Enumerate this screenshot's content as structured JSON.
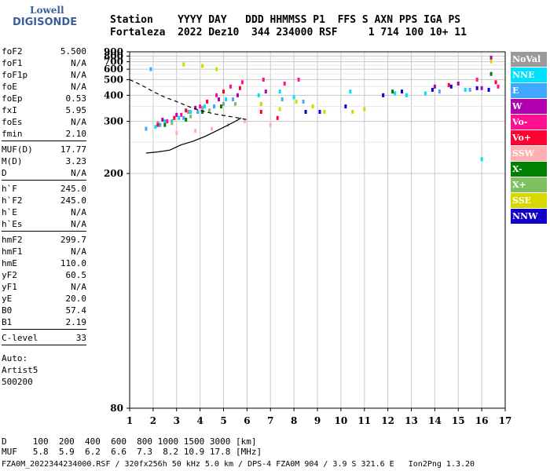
{
  "logo": {
    "line1": "Lowell",
    "line2": "DIGISONDE"
  },
  "header": {
    "line1": "Station    YYYY DAY   DDD HHMMSS P1  FFS S AXN PPS IGA PS",
    "line2": "Fortaleza  2022 Dez10  344 234000 RSF     1 714 100 10+ 11"
  },
  "params": {
    "group1": [
      {
        "label": "foF2",
        "value": "5.500"
      },
      {
        "label": "foF1",
        "value": "N/A"
      },
      {
        "label": "foF1p",
        "value": "N/A"
      },
      {
        "label": "foE",
        "value": "N/A"
      },
      {
        "label": "foEp",
        "value": "0.53"
      },
      {
        "label": "fxI",
        "value": "5.95"
      },
      {
        "label": "foEs",
        "value": "N/A"
      },
      {
        "label": "fmin",
        "value": "2.10"
      }
    ],
    "group2": [
      {
        "label": "MUF(D)",
        "value": "17.77"
      },
      {
        "label": "M(D)",
        "value": "3.23"
      },
      {
        "label": "D",
        "value": "N/A"
      }
    ],
    "group3": [
      {
        "label": "h`F",
        "value": "245.0"
      },
      {
        "label": "h`F2",
        "value": "245.0"
      },
      {
        "label": "h`E",
        "value": "N/A"
      },
      {
        "label": "h`Es",
        "value": "N/A"
      }
    ],
    "group4": [
      {
        "label": "hmF2",
        "value": "299.7"
      },
      {
        "label": "hmF1",
        "value": "N/A"
      },
      {
        "label": "hmE",
        "value": "110.0"
      },
      {
        "label": "yF2",
        "value": "60.5"
      },
      {
        "label": "yF1",
        "value": "N/A"
      },
      {
        "label": "yE",
        "value": "20.0"
      },
      {
        "label": "B0",
        "value": "57.4"
      },
      {
        "label": "B1",
        "value": "2.19"
      }
    ],
    "group5": [
      {
        "label": "C-level",
        "value": "33"
      }
    ],
    "auto": [
      "Auto:",
      "Artist5",
      "500200"
    ]
  },
  "legend": [
    {
      "label": "NoVal",
      "color": "#9a9a9a"
    },
    {
      "label": "NNE",
      "color": "#00e0ff"
    },
    {
      "label": "E",
      "color": "#40a8ff"
    },
    {
      "label": "W",
      "color": "#b000b0"
    },
    {
      "label": "Vo-",
      "color": "#ff1090"
    },
    {
      "label": "Vo+",
      "color": "#ff0030"
    },
    {
      "label": "SSW",
      "color": "#ffb0b0"
    },
    {
      "label": "X-",
      "color": "#008000"
    },
    {
      "label": "X+",
      "color": "#80c060"
    },
    {
      "label": "SSE",
      "color": "#d8d800"
    },
    {
      "label": "NNW",
      "color": "#1000c8"
    }
  ],
  "muf_table": {
    "line1": "D     100  200  400  600  800 1000 1500 3000 [km]",
    "line2": "MUF   5.8  5.9  6.2  6.6  7.3  8.2 10.9 17.8 [MHz]"
  },
  "footer": "FZA0M_2022344234000.RSF / 320fx256h 50 kHz 5.0 km / DPS-4 FZA0M 904 / 3.9 S 321.6 E   Ion2Png 1.3.20",
  "chart_data": {
    "type": "scatter",
    "x_ticks": [
      "1",
      "2",
      "3",
      "4",
      "5",
      "6",
      "7",
      "8",
      "9",
      "10",
      "11",
      "12",
      "13",
      "14",
      "15",
      "16",
      "17"
    ],
    "y_ticks": [
      "80",
      "200",
      "300",
      "400",
      "500",
      "600",
      "700",
      "800",
      "900"
    ],
    "xlim": [
      1,
      17
    ],
    "y_scale": "reciprocal",
    "ylim": [
      80,
      900
    ],
    "grid": true,
    "series": [
      {
        "name": "NoVal",
        "color": "#9a9a9a",
        "points": [
          [
            2.2,
            295
          ],
          [
            3.5,
            330
          ],
          [
            4.1,
            345
          ],
          [
            5.0,
            360
          ]
        ]
      },
      {
        "name": "NNE",
        "color": "#00e0ff",
        "points": [
          [
            2.1,
            285
          ],
          [
            2.5,
            300
          ],
          [
            3.1,
            310
          ],
          [
            3.6,
            330
          ],
          [
            4.2,
            350
          ],
          [
            5.1,
            380
          ],
          [
            6.5,
            400
          ],
          [
            7.4,
            420
          ],
          [
            8.0,
            390
          ],
          [
            10.4,
            420
          ],
          [
            12.3,
            410
          ],
          [
            12.8,
            400
          ],
          [
            13.6,
            410
          ],
          [
            15.3,
            430
          ],
          [
            16.0,
            220
          ]
        ]
      },
      {
        "name": "E",
        "color": "#40a8ff",
        "points": [
          [
            1.7,
            280
          ],
          [
            2.3,
            290
          ],
          [
            2.8,
            300
          ],
          [
            3.3,
            310
          ],
          [
            3.9,
            330
          ],
          [
            4.6,
            350
          ],
          [
            5.4,
            380
          ],
          [
            6.6,
            360
          ],
          [
            7.5,
            380
          ],
          [
            8.4,
            370
          ],
          [
            1.9,
            600
          ],
          [
            14.2,
            420
          ],
          [
            15.5,
            430
          ]
        ]
      },
      {
        "name": "W",
        "color": "#b000b0",
        "points": [
          [
            2.4,
            305
          ],
          [
            3.0,
            320
          ],
          [
            3.8,
            345
          ],
          [
            4.8,
            380
          ],
          [
            5.6,
            400
          ],
          [
            6.8,
            420
          ],
          [
            14.0,
            450
          ],
          [
            15.0,
            470
          ],
          [
            16.0,
            440
          ],
          [
            16.4,
            770
          ]
        ]
      },
      {
        "name": "Vo-",
        "color": "#ff1090",
        "points": [
          [
            2.6,
            300
          ],
          [
            3.2,
            320
          ],
          [
            4.0,
            350
          ],
          [
            4.7,
            400
          ],
          [
            5.3,
            450
          ],
          [
            5.8,
            480
          ],
          [
            6.7,
            500
          ],
          [
            7.6,
            470
          ],
          [
            8.2,
            500
          ],
          [
            15.8,
            500
          ],
          [
            16.7,
            450
          ]
        ]
      },
      {
        "name": "Vo+",
        "color": "#ff0030",
        "points": [
          [
            2.2,
            290
          ],
          [
            2.9,
            310
          ],
          [
            3.4,
            335
          ],
          [
            4.3,
            370
          ],
          [
            5.0,
            420
          ],
          [
            5.7,
            440
          ],
          [
            6.6,
            330
          ],
          [
            7.3,
            310
          ],
          [
            14.6,
            460
          ],
          [
            16.6,
            480
          ]
        ]
      },
      {
        "name": "SSW",
        "color": "#ffb0b0",
        "points": [
          [
            3.0,
            270
          ],
          [
            3.8,
            275
          ],
          [
            4.5,
            280
          ],
          [
            5.2,
            290
          ],
          [
            5.9,
            300
          ],
          [
            7.0,
            290
          ]
        ]
      },
      {
        "name": "X-",
        "color": "#008000",
        "points": [
          [
            2.5,
            290
          ],
          [
            3.4,
            305
          ],
          [
            4.1,
            330
          ],
          [
            4.9,
            350
          ],
          [
            12.2,
            420
          ],
          [
            16.4,
            550
          ]
        ]
      },
      {
        "name": "X+",
        "color": "#80c060",
        "points": [
          [
            2.8,
            295
          ],
          [
            3.6,
            315
          ],
          [
            4.4,
            335
          ],
          [
            5.5,
            360
          ]
        ]
      },
      {
        "name": "SSE",
        "color": "#d8d800",
        "points": [
          [
            3.3,
            660
          ],
          [
            4.1,
            640
          ],
          [
            4.7,
            600
          ],
          [
            6.6,
            360
          ],
          [
            7.4,
            340
          ],
          [
            8.1,
            370
          ],
          [
            8.8,
            350
          ],
          [
            9.3,
            330
          ],
          [
            10.5,
            330
          ],
          [
            11.0,
            340
          ],
          [
            16.4,
            705
          ]
        ]
      },
      {
        "name": "NNW",
        "color": "#1000c8",
        "points": [
          [
            8.5,
            330
          ],
          [
            9.1,
            330
          ],
          [
            10.2,
            350
          ],
          [
            11.8,
            400
          ],
          [
            12.6,
            420
          ],
          [
            13.9,
            430
          ],
          [
            14.7,
            450
          ],
          [
            15.8,
            440
          ],
          [
            16.3,
            430
          ]
        ]
      }
    ],
    "lines": [
      {
        "style": "dashed",
        "points": [
          [
            1,
            500
          ],
          [
            1.5,
            460
          ],
          [
            2,
            420
          ],
          [
            2.5,
            390
          ],
          [
            3,
            370
          ],
          [
            3.5,
            350
          ],
          [
            4,
            335
          ],
          [
            4.5,
            325
          ],
          [
            5,
            318
          ],
          [
            5.5,
            312
          ],
          [
            6,
            305
          ]
        ]
      },
      {
        "style": "solid",
        "points": [
          [
            1.7,
            230
          ],
          [
            2.2,
            232
          ],
          [
            2.7,
            235
          ],
          [
            3.2,
            245
          ],
          [
            3.7,
            252
          ],
          [
            4.2,
            262
          ],
          [
            4.7,
            275
          ],
          [
            5.2,
            290
          ],
          [
            5.5,
            300
          ],
          [
            5.75,
            310
          ]
        ]
      }
    ]
  }
}
